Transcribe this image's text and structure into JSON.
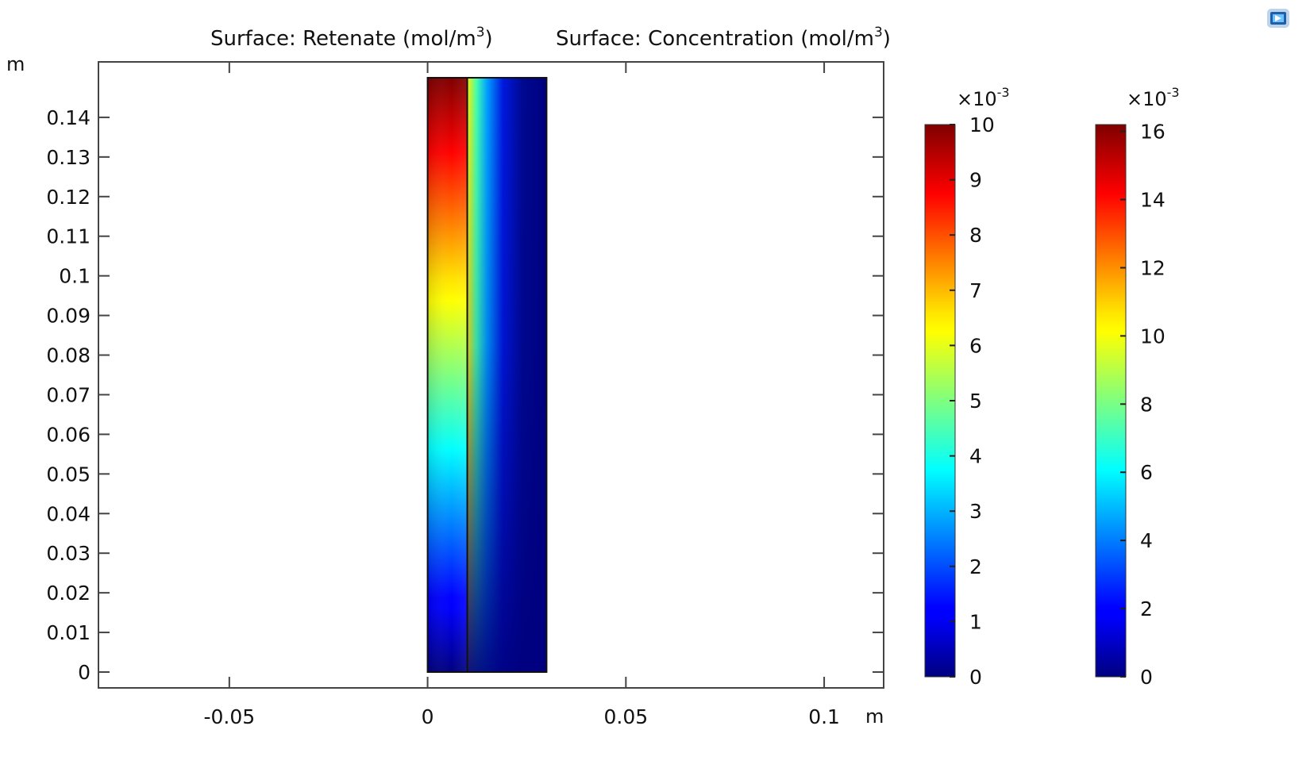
{
  "chart_data": {
    "type": "heatmap",
    "title_parts": [
      {
        "prefix": "Surface: Retenate (mol/m",
        "sup": "3",
        "suffix": ")"
      },
      {
        "prefix": "Surface: Concentration (mol/m",
        "sup": "3",
        "suffix": ")"
      }
    ],
    "xaxis": {
      "unit": "m",
      "range": [
        -0.083,
        0.115
      ],
      "ticks": [
        -0.05,
        0,
        0.05,
        0.1
      ],
      "tick_labels": [
        "-0.05",
        "0",
        "0.05",
        "0.1"
      ]
    },
    "yaxis": {
      "unit": "m",
      "range": [
        -0.004,
        0.154
      ],
      "ticks": [
        0,
        0.01,
        0.02,
        0.03,
        0.04,
        0.05,
        0.06,
        0.07,
        0.08,
        0.09,
        0.1,
        0.11,
        0.12,
        0.13,
        0.14
      ],
      "tick_labels": [
        "0",
        "0.01",
        "0.02",
        "0.03",
        "0.04",
        "0.05",
        "0.06",
        "0.07",
        "0.08",
        "0.09",
        "0.1",
        "0.11",
        "0.12",
        "0.13",
        "0.14"
      ]
    },
    "domains": [
      {
        "surface": "Retenate",
        "x_range": [
          0,
          0.01
        ],
        "y_range": [
          0,
          0.15
        ],
        "inlet_value": 0.01,
        "outlet_value": 0.001
      },
      {
        "surface": "Concentration",
        "x_range": [
          0.01,
          0.03
        ],
        "y_range": [
          0,
          0.15
        ],
        "peak_value": 0.012
      }
    ],
    "colorbars": [
      {
        "surface": "Retenate",
        "multiplier": "×10",
        "exponent": "-3",
        "min": 0,
        "max": 10,
        "ticks": [
          0,
          1,
          2,
          3,
          4,
          5,
          6,
          7,
          8,
          9,
          10
        ],
        "tick_labels": [
          "0",
          "1",
          "2",
          "3",
          "4",
          "5",
          "6",
          "7",
          "8",
          "9",
          "10"
        ]
      },
      {
        "surface": "Concentration",
        "multiplier": "×10",
        "exponent": "-3",
        "min": 0,
        "max": 16.2,
        "ticks": [
          0,
          2,
          4,
          6,
          8,
          10,
          12,
          14,
          16
        ],
        "tick_labels": [
          "0",
          "2",
          "4",
          "6",
          "8",
          "10",
          "12",
          "14",
          "16"
        ]
      }
    ],
    "colormap": "jet",
    "grid": false
  },
  "toolbar": {
    "icon": "image-snapshot-icon"
  }
}
